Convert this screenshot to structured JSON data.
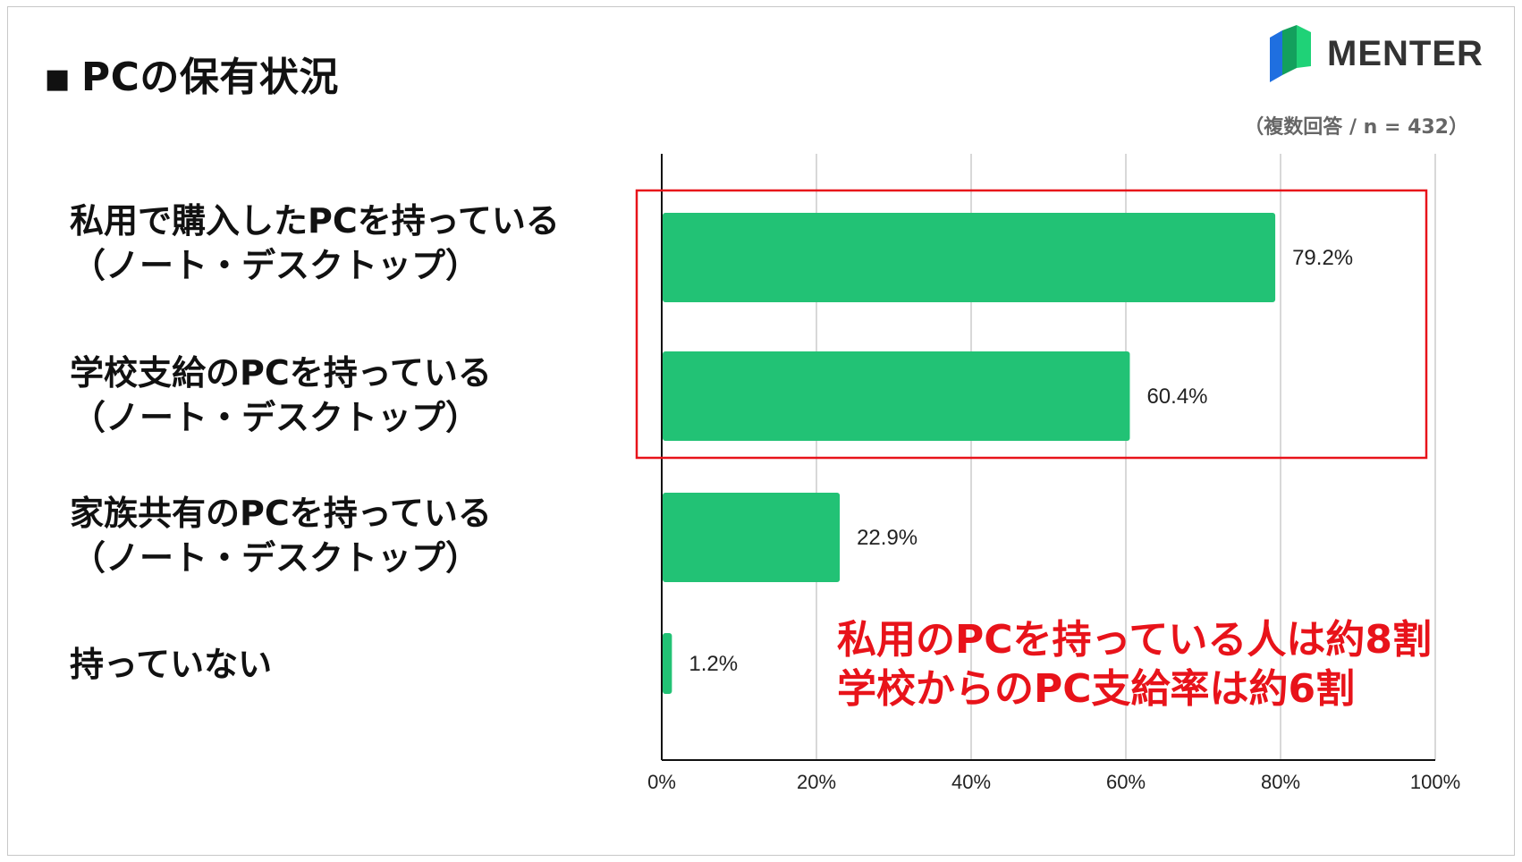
{
  "header": {
    "title_marker": "■",
    "title": "PCの保有状況",
    "brand_name": "MENTER",
    "note": "（複数回答 / n = 432）"
  },
  "categories": [
    {
      "line1": "私用で購入したPCを持っている",
      "line2": "（ノート・デスクトップ）"
    },
    {
      "line1": "学校支給のPCを持っている",
      "line2": "（ノート・デスクトップ）"
    },
    {
      "line1": "家族共有のPCを持っている",
      "line2": "（ノート・デスクトップ）"
    },
    {
      "line1": "持っていない",
      "line2": ""
    }
  ],
  "callout": {
    "line1": "私用のPCを持っている人は約8割",
    "line2": "学校からのPC支給率は約6割"
  },
  "colors": {
    "bar": "#22c275",
    "highlight_border": "#e8131a",
    "callout_text": "#e8131a",
    "grid": "#cccccc",
    "logo_green_dark": "#13a05d",
    "logo_green": "#1fd277",
    "logo_blue": "#1f6fe0"
  },
  "chart_data": {
    "type": "bar",
    "orientation": "horizontal",
    "categories": [
      "私用で購入したPCを持っている（ノート・デスクトップ）",
      "学校支給のPCを持っている（ノート・デスクトップ）",
      "家族共有のPCを持っている（ノート・デスクトップ）",
      "持っていない"
    ],
    "values": [
      79.2,
      60.4,
      22.9,
      1.2
    ],
    "value_labels": [
      "79.2%",
      "60.4%",
      "22.9%",
      "1.2%"
    ],
    "xlim": [
      0,
      100
    ],
    "x_ticks": [
      "0%",
      "20%",
      "40%",
      "60%",
      "80%",
      "100%"
    ],
    "grid": true,
    "highlighted_categories": [
      0,
      1
    ]
  }
}
